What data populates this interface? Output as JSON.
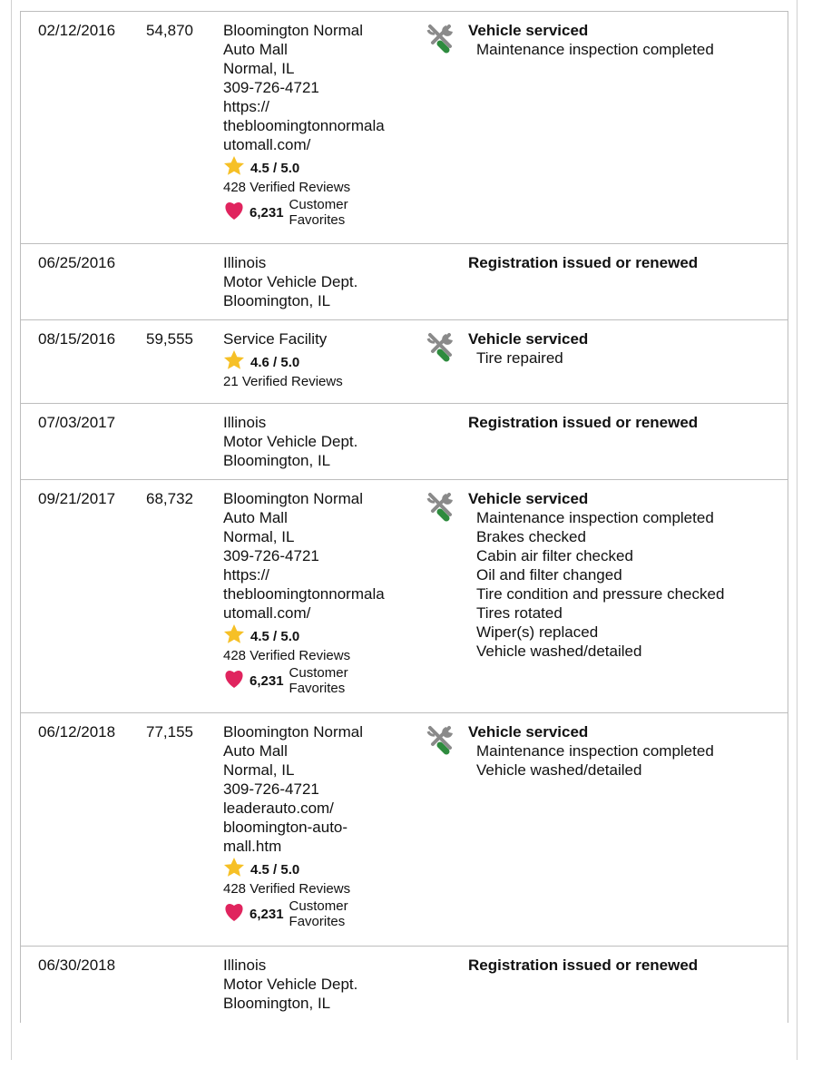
{
  "colors": {
    "star": "#f6c026",
    "heart": "#e0245e",
    "wrench": "#8a8a8a",
    "screwdriver": "#2e8b3e",
    "border": "#bdbdbd"
  },
  "records": [
    {
      "date": "02/12/2016",
      "odometer": "54,870",
      "source": [
        "Bloomington Normal",
        "Auto Mall",
        "Normal, IL",
        "309-726-4721",
        "https://",
        "thebloomingtonnormala",
        "utomall.com/"
      ],
      "rating": "4.5 / 5.0",
      "reviews": "428 Verified Reviews",
      "favorites": "6,231",
      "favorites_label": "Customer Favorites",
      "icon": "wrench-screwdriver-icon",
      "title": "Vehicle serviced",
      "items": [
        "Maintenance inspection completed"
      ],
      "h": 255
    },
    {
      "date": "06/25/2016",
      "odometer": "",
      "source": [
        "Illinois",
        "Motor Vehicle Dept.",
        "Bloomington, IL"
      ],
      "title": "Registration issued or renewed",
      "items": [],
      "h": 83
    },
    {
      "date": "08/15/2016",
      "odometer": "59,555",
      "source": [
        "Service Facility"
      ],
      "rating": "4.6 / 5.0",
      "reviews": "21 Verified Reviews",
      "icon": "wrench-screwdriver-icon",
      "title": "Vehicle serviced",
      "items": [
        "Tire repaired"
      ],
      "h": 91
    },
    {
      "date": "07/03/2017",
      "odometer": "",
      "source": [
        "Illinois",
        "Motor Vehicle Dept.",
        "Bloomington, IL"
      ],
      "title": "Registration issued or renewed",
      "items": [],
      "h": 83
    },
    {
      "date": "09/21/2017",
      "odometer": "68,732",
      "source": [
        "Bloomington Normal",
        "Auto Mall",
        "Normal, IL",
        "309-726-4721",
        "https://",
        "thebloomingtonnormala",
        "utomall.com/"
      ],
      "rating": "4.5 / 5.0",
      "reviews": "428 Verified Reviews",
      "favorites": "6,231",
      "favorites_label": "Customer Favorites",
      "icon": "wrench-screwdriver-icon",
      "title": "Vehicle serviced",
      "items": [
        "Maintenance inspection completed",
        "Brakes checked",
        "Cabin air filter checked",
        "Oil and filter changed",
        "Tire condition and pressure checked",
        "Tires rotated",
        "Wiper(s) replaced",
        "Vehicle washed/detailed"
      ],
      "h": 256
    },
    {
      "date": "06/12/2018",
      "odometer": "77,155",
      "source": [
        "Bloomington Normal",
        "Auto Mall",
        "Normal, IL",
        "309-726-4721",
        "leaderauto.com/",
        "bloomington-auto-",
        "mall.htm"
      ],
      "rating": "4.5 / 5.0",
      "reviews": "428 Verified Reviews",
      "favorites": "6,231",
      "favorites_label": "Customer Favorites",
      "icon": "wrench-screwdriver-icon",
      "title": "Vehicle serviced",
      "items": [
        "Maintenance inspection completed",
        "Vehicle washed/detailed"
      ],
      "h": 256
    },
    {
      "date": "06/30/2018",
      "odometer": "",
      "source": [
        "Illinois",
        "Motor Vehicle Dept.",
        "Bloomington, IL"
      ],
      "title": "Registration issued or renewed",
      "items": [],
      "h": 84
    }
  ]
}
